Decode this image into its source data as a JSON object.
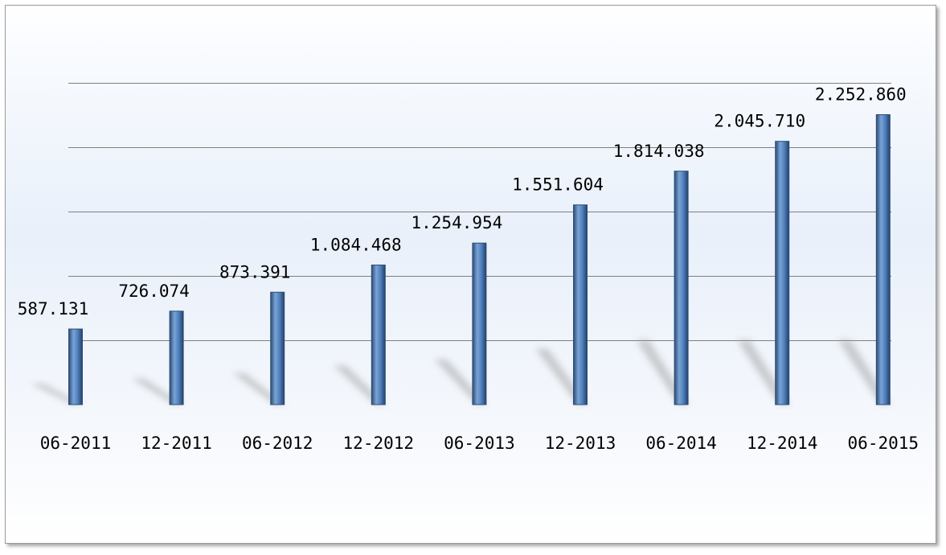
{
  "chart_data": {
    "type": "bar",
    "title": "",
    "xlabel": "",
    "ylabel": "",
    "categories": [
      "06-2011",
      "12-2011",
      "06-2012",
      "12-2012",
      "06-2013",
      "12-2013",
      "06-2014",
      "12-2014",
      "06-2015"
    ],
    "values": [
      587131,
      726074,
      873391,
      1084468,
      1254954,
      1551604,
      1814038,
      2045710,
      2252860
    ],
    "value_labels": [
      "587.131",
      "726.074",
      "873.391",
      "1.084.468",
      "1.254.954",
      "1.551.604",
      "1.814.038",
      "2.045.710",
      "2.252.860"
    ],
    "ylim": [
      0,
      2500000
    ],
    "grid": true,
    "legend": "none",
    "bar_color": "#4f81bd",
    "bar_edge_color": "#2c4d75",
    "gridline_color": "#7f7f7f"
  }
}
